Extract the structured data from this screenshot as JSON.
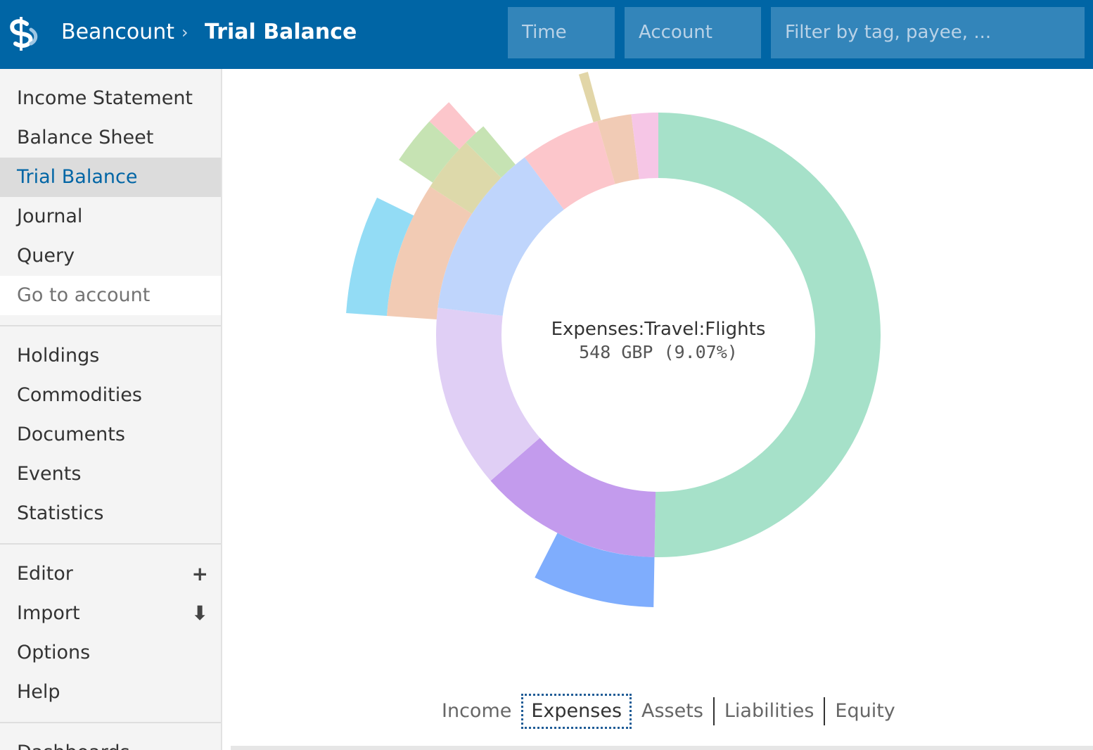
{
  "header": {
    "app_name": "Beancount",
    "separator": "›",
    "page_title": "Trial Balance",
    "time_placeholder": "Time",
    "account_placeholder": "Account",
    "filter_placeholder": "Filter by tag, payee, ...",
    "logo_icon": "beancount-logo-icon",
    "colors": {
      "header_bg": "#0065a5",
      "input_bg": "#3385ba"
    }
  },
  "sidebar": {
    "group1": [
      {
        "label": "Income Statement"
      },
      {
        "label": "Balance Sheet"
      },
      {
        "label": "Trial Balance",
        "active": true
      },
      {
        "label": "Journal"
      },
      {
        "label": "Query"
      },
      {
        "label": "Go to account"
      }
    ],
    "group2": [
      {
        "label": "Holdings"
      },
      {
        "label": "Commodities"
      },
      {
        "label": "Documents"
      },
      {
        "label": "Events"
      },
      {
        "label": "Statistics"
      }
    ],
    "group3": [
      {
        "label": "Editor",
        "icon": "plus-icon"
      },
      {
        "label": "Import",
        "icon": "download-arrow-icon"
      },
      {
        "label": "Options"
      },
      {
        "label": "Help"
      }
    ],
    "group4_partial": "Dashboards"
  },
  "chart": {
    "center_account": "Expenses:Travel:Flights",
    "center_value": "548 GBP (9.07%)"
  },
  "chart_data": {
    "type": "sunburst",
    "title": "",
    "segments": [
      {
        "ring": 1,
        "start_deg": 0,
        "end_deg": 181,
        "color": "#a6e1c9"
      },
      {
        "ring": 1,
        "start_deg": 181,
        "end_deg": 229,
        "color": "#c39bed"
      },
      {
        "ring": 1,
        "start_deg": 229,
        "end_deg": 277,
        "color": "#e0cff5"
      },
      {
        "ring": 1,
        "start_deg": 277,
        "end_deg": 323,
        "color": "#bfd5fc"
      },
      {
        "ring": 1,
        "start_deg": 323,
        "end_deg": 344,
        "color": "#fcc6cb"
      },
      {
        "ring": 1,
        "start_deg": 344,
        "end_deg": 353,
        "color": "#f1cbb5"
      },
      {
        "ring": 1,
        "start_deg": 353,
        "end_deg": 360,
        "color": "#f6c6e6"
      },
      {
        "ring": 2,
        "start_deg": 181,
        "end_deg": 207,
        "color": "#7fadfd"
      },
      {
        "ring": 2,
        "start_deg": 274,
        "end_deg": 303,
        "color": "#f2cbb4"
      },
      {
        "ring": 2,
        "start_deg": 303,
        "end_deg": 315,
        "color": "#ddd9aa"
      },
      {
        "ring": 2,
        "start_deg": 315,
        "end_deg": 320,
        "color": "#c6e3b3"
      },
      {
        "ring": 2,
        "start_deg": 343,
        "end_deg": 345,
        "color": "#e2d6a8"
      },
      {
        "ring": 3,
        "start_deg": 274,
        "end_deg": 296,
        "color": "#93dcf5"
      },
      {
        "ring": 3,
        "start_deg": 304,
        "end_deg": 313,
        "color": "#c6e3b3"
      },
      {
        "ring": 3,
        "start_deg": 313,
        "end_deg": 318,
        "color": "#fcc6cb"
      }
    ]
  },
  "tabs": {
    "items": [
      {
        "label": "Income"
      },
      {
        "label": "Expenses",
        "active": true
      },
      {
        "label": "Assets"
      },
      {
        "label": "Liabilities"
      },
      {
        "label": "Equity"
      }
    ]
  }
}
